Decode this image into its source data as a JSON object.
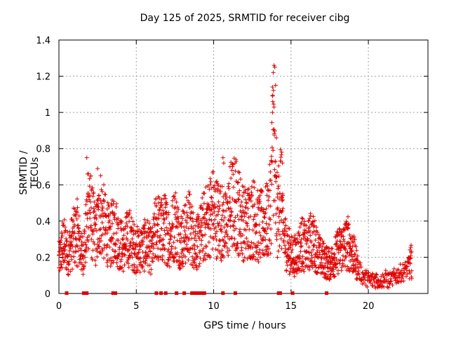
{
  "chart_data": {
    "type": "scatter",
    "title": "Day 125 of 2025, SRMTID for receiver cibg",
    "xlabel": "GPS time / hours",
    "ylabel": "SRMTID / TECUs",
    "xlim": [
      0,
      23.85
    ],
    "ylim": [
      0,
      1.4
    ],
    "xticks": [
      "0",
      "5",
      "10",
      "15",
      "20"
    ],
    "yticks": [
      "0",
      "0.2",
      "0.4",
      "0.6",
      "0.8",
      "1",
      "1.2",
      "1.4"
    ],
    "grid": true,
    "marker": "plus",
    "color": "#e00000",
    "series": [
      {
        "name": "SRMTID",
        "x": [
          0.0,
          0.3,
          0.6,
          0.9,
          1.2,
          1.5,
          1.8,
          1.95,
          2.1,
          2.4,
          2.7,
          3.0,
          3.3,
          3.6,
          3.9,
          4.2,
          4.5,
          4.8,
          5.1,
          5.4,
          5.7,
          6.0,
          6.3,
          6.6,
          6.9,
          7.2,
          7.5,
          7.8,
          8.1,
          8.4,
          8.7,
          9.0,
          9.3,
          9.6,
          9.9,
          10.2,
          10.5,
          10.8,
          11.1,
          11.4,
          11.7,
          12.0,
          12.3,
          12.6,
          12.9,
          13.2,
          13.5,
          13.7,
          13.85,
          14.0,
          14.15,
          14.3,
          14.5,
          14.8,
          15.1,
          15.4,
          15.7,
          16.0,
          16.3,
          16.6,
          16.9,
          17.2,
          17.5,
          17.8,
          18.1,
          18.4,
          18.7,
          19.0,
          19.3,
          19.6,
          19.9,
          20.2,
          20.5,
          20.8,
          21.1,
          21.4,
          21.7,
          22.0,
          22.3,
          22.6,
          22.8
        ],
        "y": [
          0.18,
          0.28,
          0.22,
          0.3,
          0.34,
          0.2,
          0.35,
          0.55,
          0.4,
          0.32,
          0.45,
          0.36,
          0.3,
          0.38,
          0.28,
          0.25,
          0.32,
          0.26,
          0.24,
          0.25,
          0.28,
          0.22,
          0.38,
          0.34,
          0.36,
          0.3,
          0.4,
          0.3,
          0.32,
          0.38,
          0.3,
          0.28,
          0.36,
          0.4,
          0.46,
          0.42,
          0.4,
          0.36,
          0.48,
          0.5,
          0.44,
          0.38,
          0.4,
          0.42,
          0.36,
          0.38,
          0.4,
          0.5,
          0.95,
          0.5,
          0.4,
          0.62,
          0.32,
          0.25,
          0.2,
          0.22,
          0.28,
          0.24,
          0.3,
          0.26,
          0.2,
          0.18,
          0.16,
          0.2,
          0.24,
          0.26,
          0.28,
          0.22,
          0.15,
          0.1,
          0.08,
          0.07,
          0.08,
          0.06,
          0.08,
          0.07,
          0.09,
          0.11,
          0.12,
          0.15,
          0.18
        ]
      }
    ],
    "peaks": {
      "x": [
        1.8,
        1.85,
        2.5,
        10.6,
        10.65,
        13.8,
        13.85,
        13.9,
        13.95,
        14.0,
        14.05,
        14.4,
        14.45,
        6.8
      ],
      "y": [
        0.75,
        0.66,
        0.69,
        0.75,
        0.72,
        1.0,
        1.22,
        1.26,
        1.25,
        1.15,
        0.86,
        0.78,
        0.72,
        0.54
      ]
    },
    "zero_flags": {
      "x": [
        0.5,
        1.6,
        1.8,
        3.5,
        3.65,
        6.3,
        6.6,
        6.9,
        7.6,
        8.1,
        8.6,
        8.8,
        8.9,
        9.0,
        9.1,
        9.2,
        9.3,
        9.4,
        10.6,
        11.4,
        14.2,
        14.3,
        15.1,
        17.3
      ]
    }
  }
}
